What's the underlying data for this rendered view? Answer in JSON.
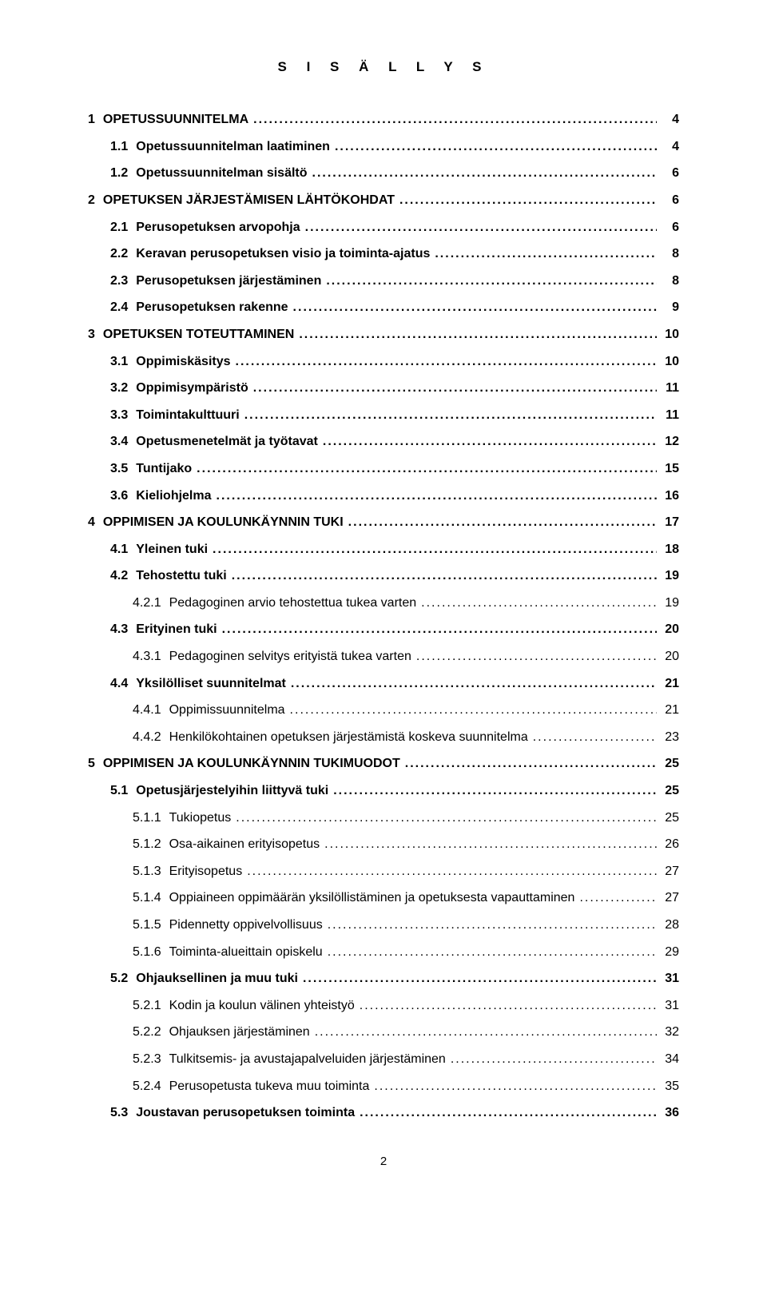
{
  "title": "S I S Ä L L Y S",
  "page_number": "2",
  "colors": {
    "text": "#000000",
    "background": "#ffffff"
  },
  "typography": {
    "base_fontsize_pt": 12,
    "title_fontsize_pt": 13,
    "font_family": "Arial"
  },
  "entries": [
    {
      "num": "1",
      "label": "OPETUSSUUNNITELMA",
      "page": "4",
      "bold": true,
      "indent": 0
    },
    {
      "num": "1.1",
      "label": "Opetussuunnitelman laatiminen",
      "page": "4",
      "bold": true,
      "indent": 1
    },
    {
      "num": "1.2",
      "label": "Opetussuunnitelman sisältö",
      "page": "6",
      "bold": true,
      "indent": 1
    },
    {
      "num": "2",
      "label": "OPETUKSEN JÄRJESTÄMISEN LÄHTÖKOHDAT",
      "page": "6",
      "bold": true,
      "indent": 0
    },
    {
      "num": "2.1",
      "label": "Perusopetuksen arvopohja",
      "page": "6",
      "bold": true,
      "indent": 1
    },
    {
      "num": "2.2",
      "label": "Keravan perusopetuksen visio ja toiminta-ajatus",
      "page": "8",
      "bold": true,
      "indent": 1
    },
    {
      "num": "2.3",
      "label": "Perusopetuksen järjestäminen",
      "page": "8",
      "bold": true,
      "indent": 1
    },
    {
      "num": "2.4",
      "label": "Perusopetuksen rakenne",
      "page": "9",
      "bold": true,
      "indent": 1
    },
    {
      "num": "3",
      "label": "OPETUKSEN TOTEUTTAMINEN",
      "page": "10",
      "bold": true,
      "indent": 0
    },
    {
      "num": "3.1",
      "label": "Oppimiskäsitys",
      "page": "10",
      "bold": true,
      "indent": 1
    },
    {
      "num": "3.2",
      "label": "Oppimisympäristö",
      "page": "11",
      "bold": true,
      "indent": 1
    },
    {
      "num": "3.3",
      "label": "Toimintakulttuuri",
      "page": "11",
      "bold": true,
      "indent": 1
    },
    {
      "num": "3.4",
      "label": "Opetusmenetelmät ja työtavat",
      "page": "12",
      "bold": true,
      "indent": 1
    },
    {
      "num": "3.5",
      "label": "Tuntijako",
      "page": "15",
      "bold": true,
      "indent": 1
    },
    {
      "num": "3.6",
      "label": "Kieliohjelma",
      "page": "16",
      "bold": true,
      "indent": 1
    },
    {
      "num": "4",
      "label": "OPPIMISEN JA KOULUNKÄYNNIN TUKI",
      "page": "17",
      "bold": true,
      "indent": 0
    },
    {
      "num": "4.1",
      "label": "Yleinen tuki",
      "page": "18",
      "bold": true,
      "indent": 1
    },
    {
      "num": "4.2",
      "label": "Tehostettu tuki",
      "page": "19",
      "bold": true,
      "indent": 1
    },
    {
      "num": "4.2.1",
      "label": "Pedagoginen arvio tehostettua tukea varten",
      "page": "19",
      "bold": false,
      "indent": 2
    },
    {
      "num": "4.3",
      "label": "Erityinen tuki",
      "page": "20",
      "bold": true,
      "indent": 1
    },
    {
      "num": "4.3.1",
      "label": "Pedagoginen selvitys erityistä tukea varten",
      "page": "20",
      "bold": false,
      "indent": 2
    },
    {
      "num": "4.4",
      "label": "Yksilölliset suunnitelmat",
      "page": "21",
      "bold": true,
      "indent": 1
    },
    {
      "num": "4.4.1",
      "label": "Oppimissuunnitelma",
      "page": "21",
      "bold": false,
      "indent": 2
    },
    {
      "num": "4.4.2",
      "label": "Henkilökohtainen opetuksen järjestämistä koskeva suunnitelma",
      "page": "23",
      "bold": false,
      "indent": 2
    },
    {
      "num": "5",
      "label": "OPPIMISEN JA KOULUNKÄYNNIN TUKIMUODOT",
      "page": "25",
      "bold": true,
      "indent": 0
    },
    {
      "num": "5.1",
      "label": "Opetusjärjestelyihin liittyvä tuki",
      "page": "25",
      "bold": true,
      "indent": 1
    },
    {
      "num": "5.1.1",
      "label": "Tukiopetus",
      "page": "25",
      "bold": false,
      "indent": 2
    },
    {
      "num": "5.1.2",
      "label": "Osa-aikainen erityisopetus",
      "page": "26",
      "bold": false,
      "indent": 2
    },
    {
      "num": "5.1.3",
      "label": "Erityisopetus",
      "page": "27",
      "bold": false,
      "indent": 2
    },
    {
      "num": "5.1.4",
      "label": "Oppiaineen oppimäärän yksilöllistäminen ja opetuksesta vapauttaminen",
      "page": "27",
      "bold": false,
      "indent": 2
    },
    {
      "num": "5.1.5",
      "label": "Pidennetty oppivelvollisuus",
      "page": "28",
      "bold": false,
      "indent": 2
    },
    {
      "num": "5.1.6",
      "label": "Toiminta-alueittain opiskelu",
      "page": "29",
      "bold": false,
      "indent": 2
    },
    {
      "num": "5.2",
      "label": "Ohjauksellinen ja muu tuki",
      "page": "31",
      "bold": true,
      "indent": 1
    },
    {
      "num": "5.2.1",
      "label": "Kodin ja koulun välinen yhteistyö",
      "page": "31",
      "bold": false,
      "indent": 2
    },
    {
      "num": "5.2.2",
      "label": "Ohjauksen järjestäminen",
      "page": "32",
      "bold": false,
      "indent": 2
    },
    {
      "num": "5.2.3",
      "label": "Tulkitsemis- ja avustajapalveluiden järjestäminen",
      "page": "34",
      "bold": false,
      "indent": 2
    },
    {
      "num": "5.2.4",
      "label": "Perusopetusta tukeva muu toiminta",
      "page": "35",
      "bold": false,
      "indent": 2
    },
    {
      "num": "5.3",
      "label": "Joustavan perusopetuksen toiminta",
      "page": "36",
      "bold": true,
      "indent": 1
    }
  ]
}
